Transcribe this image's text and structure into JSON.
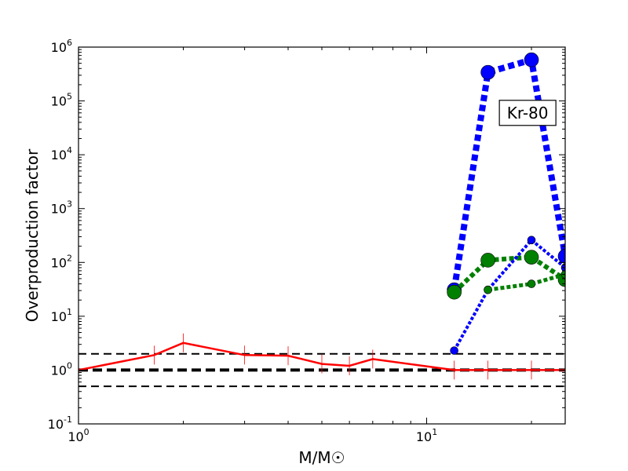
{
  "chart_data": {
    "type": "line",
    "xlabel": "M/M☉",
    "ylabel": "Overproduction factor",
    "x_scale": "log",
    "y_scale": "log",
    "xlim": [
      1,
      25
    ],
    "ylim": [
      0.1,
      1000000
    ],
    "grid": false,
    "x_ticks": [
      {
        "value": 1,
        "base": "10",
        "exp": "0"
      },
      {
        "value": 10,
        "base": "10",
        "exp": "1"
      }
    ],
    "y_ticks": [
      {
        "value": 0.1,
        "base": "10",
        "exp": "-1"
      },
      {
        "value": 1,
        "base": "10",
        "exp": "0"
      },
      {
        "value": 10,
        "base": "10",
        "exp": "1"
      },
      {
        "value": 100,
        "base": "10",
        "exp": "2"
      },
      {
        "value": 1000,
        "base": "10",
        "exp": "3"
      },
      {
        "value": 10000,
        "base": "10",
        "exp": "4"
      },
      {
        "value": 100000,
        "base": "10",
        "exp": "5"
      },
      {
        "value": 1000000,
        "base": "10",
        "exp": "6"
      }
    ],
    "reference_lines": [
      {
        "y": 2,
        "color": "#000000",
        "dash": "dashed",
        "width": 2
      },
      {
        "y": 1,
        "color": "#000000",
        "dash": "dashed",
        "width": 4
      },
      {
        "y": 0.5,
        "color": "#000000",
        "dash": "dashed",
        "width": 2
      }
    ],
    "series": [
      {
        "color": "#ff0000",
        "style": "solid",
        "line_width": 2.5,
        "marker": "errorbar",
        "x": [
          1,
          1.65,
          2,
          3,
          4,
          5,
          6,
          7,
          12,
          15,
          20,
          25
        ],
        "y": [
          1.0,
          1.9,
          3.2,
          1.9,
          1.85,
          1.3,
          1.2,
          1.6,
          1.0,
          1.0,
          1.0,
          1.0
        ]
      },
      {
        "color": "#0000ff",
        "style": "dotted",
        "line_width": 8,
        "marker": "circle",
        "marker_size": 9,
        "x": [
          12,
          15,
          20,
          25
        ],
        "y": [
          31,
          340000,
          580000,
          130
        ]
      },
      {
        "color": "#008000",
        "style": "dotted",
        "line_width": 6,
        "marker": "circle",
        "marker_size": 9,
        "x": [
          12,
          15,
          20,
          25
        ],
        "y": [
          28,
          110,
          125,
          48
        ]
      },
      {
        "color": "#0000ff",
        "style": "dotted",
        "line_width": 4,
        "marker": "circle",
        "marker_size": 5,
        "x": [
          12,
          15,
          20,
          25
        ],
        "y": [
          2.3,
          31,
          260,
          80
        ]
      },
      {
        "color": "#008000",
        "style": "dotted",
        "line_width": 5,
        "marker": "circle",
        "marker_size": 5,
        "x": [
          15,
          20,
          25
        ],
        "y": [
          31,
          40,
          60
        ]
      }
    ],
    "annotation": {
      "text": "Kr-80",
      "x": 19.5,
      "y": 60000
    }
  }
}
